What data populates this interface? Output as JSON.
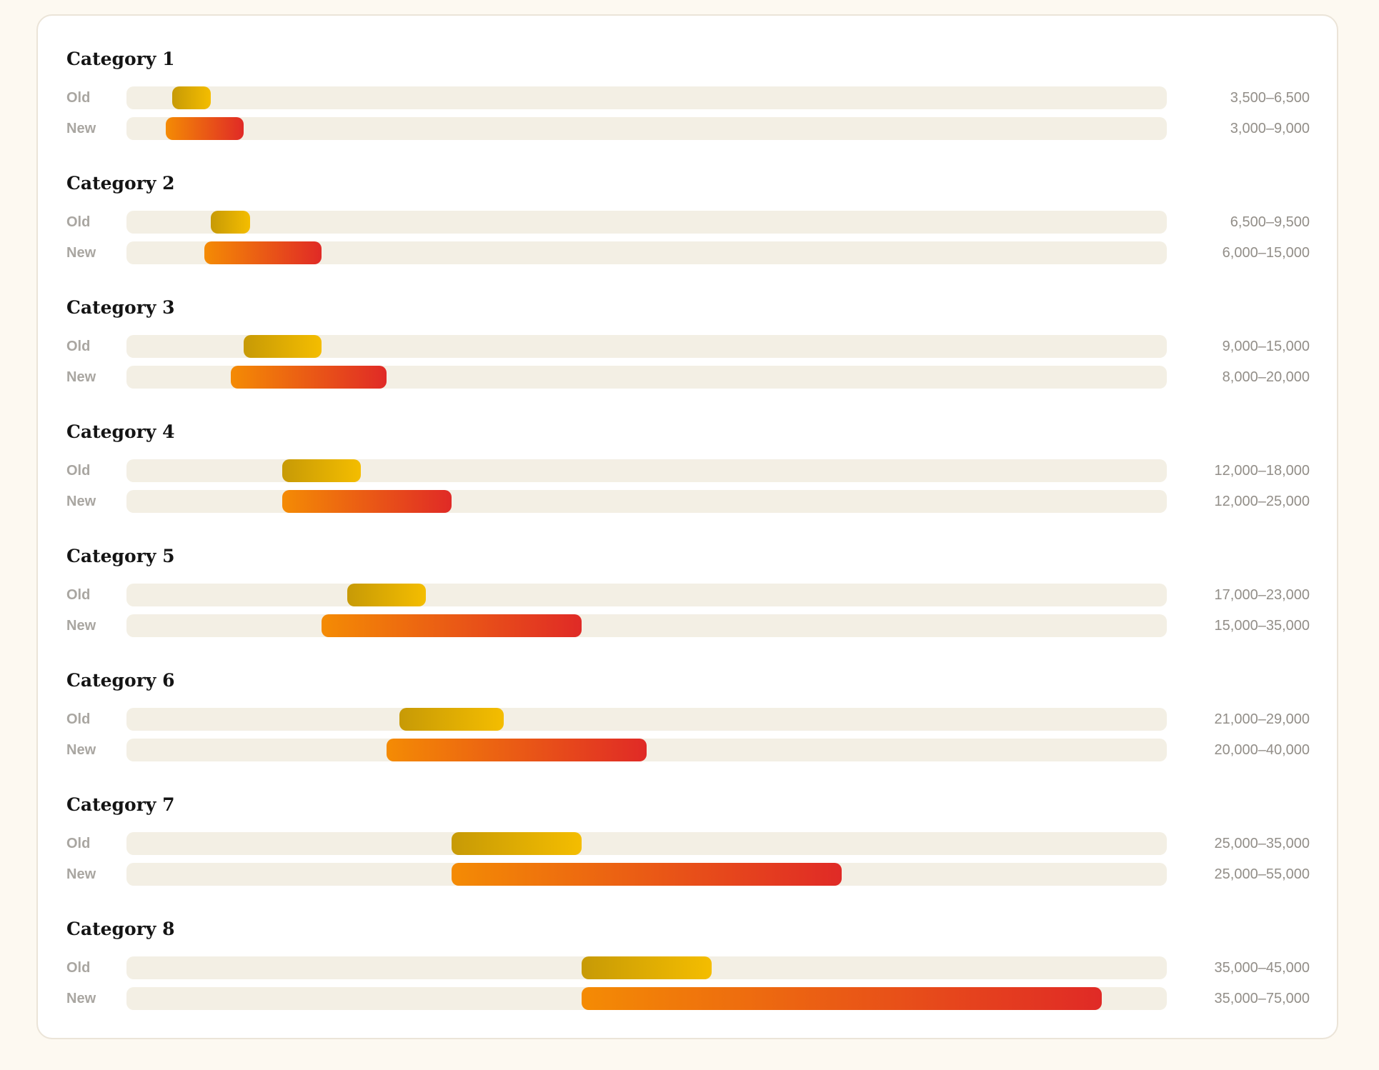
{
  "chart_data": {
    "type": "bar",
    "orientation": "horizontal",
    "style": "range-bars",
    "xlim": [
      0,
      80000
    ],
    "grid": false,
    "legend": "none",
    "colors": {
      "old_start": "#c79a06",
      "old_end": "#f4bd00",
      "new_start": "#f48b04",
      "new_end": "#e02a26",
      "track": "#f3efe4"
    },
    "series_labels": [
      "Old",
      "New"
    ],
    "groups": [
      {
        "title": "Category 1",
        "old": [
          3500,
          6500
        ],
        "new": [
          3000,
          9000
        ],
        "old_label": "3,500–6,500",
        "new_label": "3,000–9,000"
      },
      {
        "title": "Category 2",
        "old": [
          6500,
          9500
        ],
        "new": [
          6000,
          15000
        ],
        "old_label": "6,500–9,500",
        "new_label": "6,000–15,000"
      },
      {
        "title": "Category 3",
        "old": [
          9000,
          15000
        ],
        "new": [
          8000,
          20000
        ],
        "old_label": "9,000–15,000",
        "new_label": "8,000–20,000"
      },
      {
        "title": "Category 4",
        "old": [
          12000,
          18000
        ],
        "new": [
          12000,
          25000
        ],
        "old_label": "12,000–18,000",
        "new_label": "12,000–25,000"
      },
      {
        "title": "Category 5",
        "old": [
          17000,
          23000
        ],
        "new": [
          15000,
          35000
        ],
        "old_label": "17,000–23,000",
        "new_label": "15,000–35,000"
      },
      {
        "title": "Category 6",
        "old": [
          21000,
          29000
        ],
        "new": [
          20000,
          40000
        ],
        "old_label": "21,000–29,000",
        "new_label": "20,000–40,000"
      },
      {
        "title": "Category 7",
        "old": [
          25000,
          35000
        ],
        "new": [
          25000,
          55000
        ],
        "old_label": "25,000–35,000",
        "new_label": "25,000–55,000"
      },
      {
        "title": "Category 8",
        "old": [
          35000,
          45000
        ],
        "new": [
          35000,
          75000
        ],
        "old_label": "35,000–45,000",
        "new_label": "35,000–75,000"
      }
    ]
  }
}
